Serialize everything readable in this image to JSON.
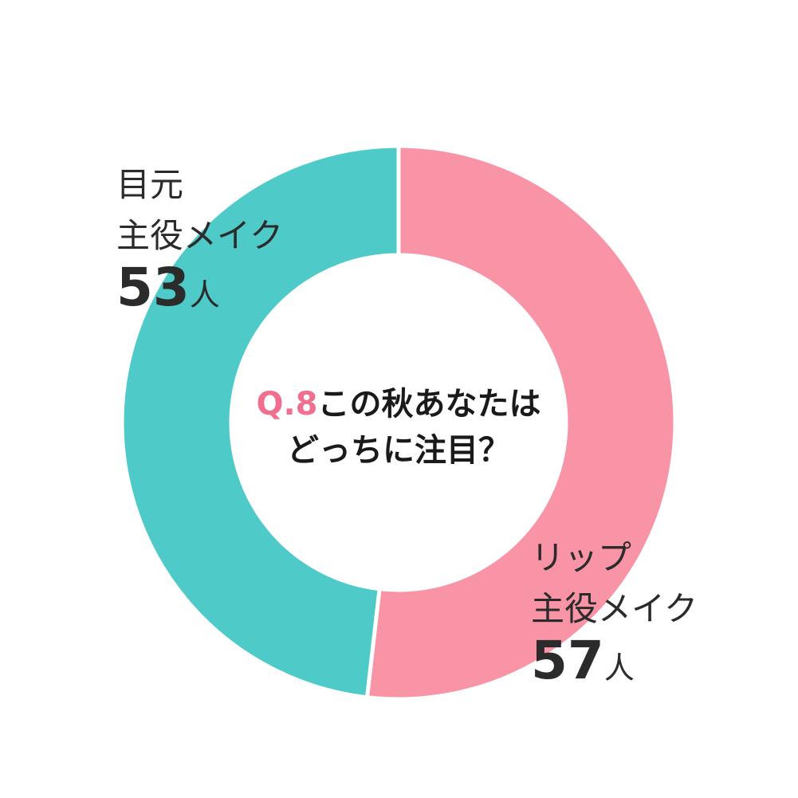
{
  "question": {
    "prefix": "Q.8",
    "line1": "この秋あなたは",
    "line2": "どっちに注目？"
  },
  "chart_data": {
    "type": "pie",
    "donut": true,
    "categories": [
      "リップ主役メイク",
      "目元主役メイク"
    ],
    "values": [
      57,
      53
    ],
    "unit": "人",
    "colors": [
      "#f894a6",
      "#4ecbc9"
    ],
    "start": "top",
    "direction": "clockwise",
    "legend": "none"
  },
  "labels": {
    "lip": {
      "line1": "リップ",
      "line2": "主役メイク",
      "count": "57",
      "unit": "人"
    },
    "eye": {
      "line1": "目元",
      "line2": "主役メイク",
      "count": "53",
      "unit": "人"
    }
  },
  "colors": {
    "accent": "#f06f8e",
    "text": "#1a1a1a"
  }
}
